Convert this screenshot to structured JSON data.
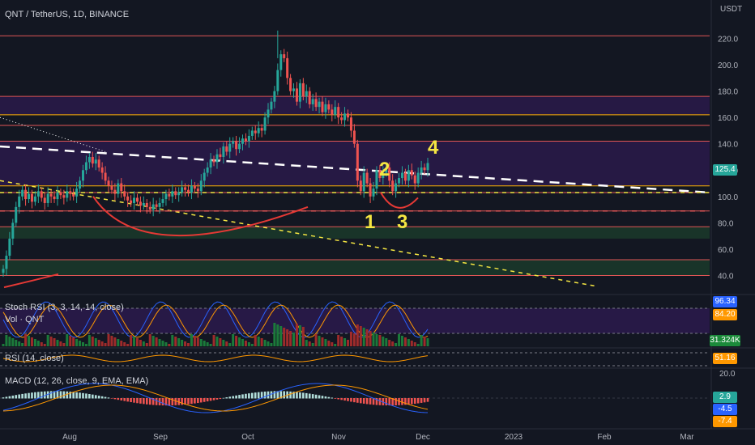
{
  "header": {
    "symbol": "QNT / TetherUS, 1D, BINANCE",
    "currency": "USDT"
  },
  "panes": {
    "stoch_title": "Stoch RSI (3, 3, 14, 14, close)",
    "vol_title": "Vol · QNT",
    "rsi_title": "RSI (14, close)",
    "macd_title": "MACD (12, 26, close, 9, EMA, EMA)"
  },
  "badges": {
    "price": "125.4",
    "stoch_k": "96.34",
    "stoch_d": "84.20",
    "volume": "31.324K",
    "rsi": "51.16",
    "macd_hist": "2.9",
    "macd_line": "-4.5",
    "macd_signal": "-7.4"
  },
  "annotations": [
    "1",
    "2",
    "3",
    "4"
  ],
  "colors": {
    "background": "#131722",
    "up": "#26a69a",
    "down": "#ef5350",
    "purple_zone": "#2a1a4a",
    "green_zone": "#1b3a2a",
    "annotation": "#f5e642",
    "price_badge": "#26a69a"
  },
  "chart_data": {
    "type": "candlestick",
    "y_axis": {
      "ticks": [
        "220.0",
        "200.0",
        "180.0",
        "160.0",
        "140.0",
        "120.0",
        "100.0",
        "80.0",
        "60.0",
        "40.0"
      ],
      "range": [
        28,
        232
      ]
    },
    "x_axis": {
      "ticks": [
        "Aug",
        "Sep",
        "Oct",
        "Nov",
        "Dec",
        "2023",
        "Feb",
        "Mar"
      ]
    },
    "macd_axis": {
      "ticks": [
        "20.0"
      ]
    },
    "closes": [
      45,
      55,
      68,
      80,
      92,
      100,
      105,
      98,
      102,
      96,
      100,
      104,
      99,
      95,
      102,
      100,
      98,
      103,
      101,
      99,
      104,
      102,
      100,
      106,
      112,
      120,
      126,
      130,
      125,
      128,
      122,
      118,
      112,
      108,
      105,
      102,
      110,
      104,
      100,
      97,
      95,
      99,
      96,
      93,
      95,
      92,
      90,
      94,
      92,
      95,
      98,
      102,
      100,
      104,
      101,
      103,
      107,
      105,
      103,
      108,
      106,
      104,
      112,
      118,
      122,
      128,
      126,
      132,
      130,
      138,
      134,
      140,
      142,
      136,
      140,
      144,
      142,
      146,
      150,
      148,
      152,
      150,
      160,
      166,
      172,
      180,
      196,
      208,
      205,
      190,
      180,
      182,
      172,
      186,
      176,
      180,
      170,
      174,
      168,
      172,
      164,
      170,
      166,
      162,
      168,
      160,
      158,
      163,
      160,
      150,
      140,
      112,
      104,
      118,
      110,
      100,
      106,
      120,
      114,
      118,
      122,
      112,
      104,
      110,
      114,
      118,
      112,
      120,
      116,
      110,
      118,
      122,
      120,
      125.4
    ],
    "horizontal_levels": [
      222,
      176,
      162,
      154,
      142,
      108,
      103,
      89,
      77,
      52,
      40
    ],
    "zones": [
      {
        "kind": "purple",
        "top": 176,
        "bottom": 162
      },
      {
        "kind": "purple",
        "top": 142,
        "bottom": 108
      },
      {
        "kind": "green",
        "top": 77,
        "bottom": 68
      },
      {
        "kind": "green",
        "top": 52,
        "bottom": 40
      }
    ],
    "last_price": 125.4
  }
}
